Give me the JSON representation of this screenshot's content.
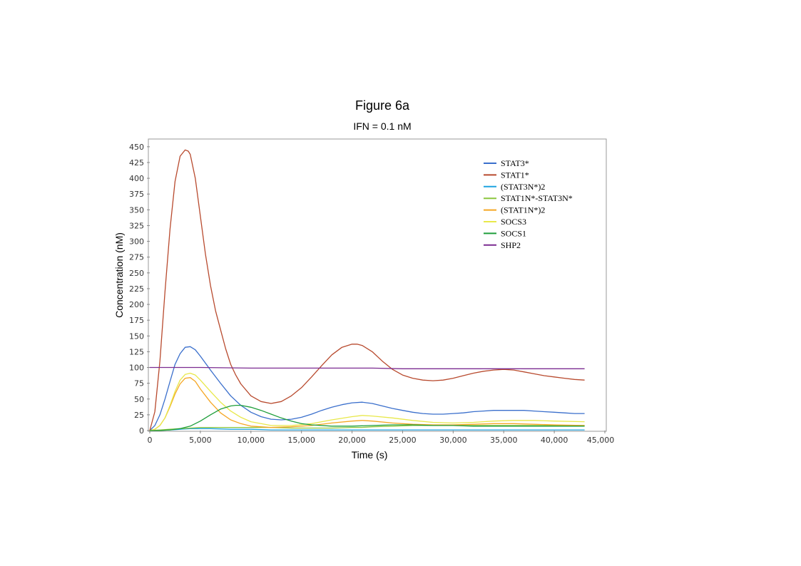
{
  "chart_data": {
    "type": "line",
    "title": "Figure 6a",
    "subtitle": "IFN = 0.1 nM",
    "xlabel": "Time (s)",
    "ylabel": "Concentration (nM)",
    "xlim": [
      0,
      45000
    ],
    "ylim": [
      0,
      460
    ],
    "xticks": [
      0,
      5000,
      10000,
      15000,
      20000,
      25000,
      30000,
      35000,
      40000,
      45000
    ],
    "xtick_labels": [
      "0",
      "5,000",
      "10,000",
      "15,000",
      "20,000",
      "25,000",
      "30,000",
      "35,000",
      "40,000",
      "45,000"
    ],
    "yticks": [
      0,
      25,
      50,
      75,
      100,
      125,
      150,
      175,
      200,
      225,
      250,
      275,
      300,
      325,
      350,
      375,
      400,
      425,
      450
    ],
    "ytick_labels": [
      "0",
      "25",
      "50",
      "75",
      "100",
      "125",
      "150",
      "175",
      "200",
      "225",
      "250",
      "275",
      "300",
      "325",
      "350",
      "375",
      "400",
      "425",
      "450"
    ],
    "grid": false,
    "legend_position": "top-right",
    "series": [
      {
        "name": "STAT3*",
        "color": "#3a6fcc",
        "x": [
          0,
          500,
          1000,
          1500,
          2000,
          2500,
          3000,
          3500,
          4000,
          4500,
          5000,
          6000,
          7000,
          8000,
          9000,
          10000,
          11000,
          12000,
          13000,
          14000,
          15000,
          16000,
          17000,
          18000,
          19000,
          20000,
          21000,
          22000,
          23000,
          24000,
          25000,
          26000,
          27000,
          28000,
          29000,
          30000,
          31000,
          32000,
          33000,
          34000,
          35000,
          36000,
          37000,
          38000,
          39000,
          40000,
          41000,
          42000,
          43000
        ],
        "values": [
          0,
          8,
          25,
          50,
          78,
          105,
          122,
          132,
          133,
          128,
          118,
          96,
          75,
          55,
          40,
          29,
          22,
          18,
          17,
          18,
          21,
          26,
          32,
          37,
          41,
          44,
          45,
          43,
          39,
          35,
          32,
          29,
          27,
          26,
          26,
          27,
          28,
          30,
          31,
          32,
          32,
          32,
          32,
          31,
          30,
          29,
          28,
          27,
          27
        ]
      },
      {
        "name": "STAT1*",
        "color": "#b84a2e",
        "x": [
          0,
          500,
          1000,
          1500,
          2000,
          2500,
          3000,
          3500,
          3800,
          4000,
          4500,
          5000,
          5500,
          6000,
          6500,
          7000,
          7500,
          8000,
          8500,
          9000,
          10000,
          11000,
          12000,
          13000,
          14000,
          15000,
          16000,
          17000,
          18000,
          19000,
          20000,
          20500,
          21000,
          22000,
          23000,
          24000,
          25000,
          26000,
          27000,
          28000,
          29000,
          30000,
          31000,
          32000,
          33000,
          34000,
          35000,
          36000,
          37000,
          38000,
          39000,
          40000,
          41000,
          42000,
          43000
        ],
        "values": [
          0,
          30,
          110,
          220,
          320,
          395,
          435,
          445,
          443,
          438,
          400,
          340,
          280,
          230,
          190,
          160,
          130,
          105,
          88,
          74,
          55,
          46,
          43,
          46,
          55,
          68,
          85,
          103,
          120,
          132,
          137,
          137,
          135,
          125,
          110,
          97,
          88,
          83,
          80,
          79,
          80,
          83,
          87,
          91,
          94,
          96,
          97,
          96,
          93,
          90,
          87,
          85,
          83,
          81,
          80
        ]
      },
      {
        "name": "(STAT3N*)2",
        "color": "#1fa4e0",
        "x": [
          0,
          2000,
          4000,
          6000,
          8000,
          10000,
          12000,
          16000,
          20000,
          25000,
          30000,
          35000,
          40000,
          43000
        ],
        "values": [
          0,
          1,
          3,
          3,
          2,
          2,
          1,
          1,
          1,
          1,
          1,
          1,
          1,
          1
        ]
      },
      {
        "name": "STAT1N*-STAT3N*",
        "color": "#8cc63f",
        "x": [
          0,
          1000,
          2000,
          3000,
          4000,
          5000,
          6000,
          8000,
          10000,
          12000,
          14000,
          16000,
          18000,
          20000,
          21000,
          22000,
          24000,
          26000,
          28000,
          30000,
          33000,
          36000,
          40000,
          43000
        ],
        "values": [
          0,
          1,
          2,
          3,
          4,
          5,
          5,
          5,
          5,
          5,
          4,
          4,
          4,
          5,
          5,
          6,
          7,
          8,
          8,
          8,
          8,
          8,
          8,
          8
        ]
      },
      {
        "name": "(STAT1N*)2",
        "color": "#f5a623",
        "x": [
          0,
          500,
          1000,
          1500,
          2000,
          2500,
          3000,
          3500,
          4000,
          4500,
          5000,
          6000,
          7000,
          8000,
          9000,
          10000,
          12000,
          14000,
          16000,
          18000,
          20000,
          21000,
          22000,
          24000,
          26000,
          28000,
          30000,
          32000,
          34000,
          36000,
          38000,
          40000,
          43000
        ],
        "values": [
          0,
          2,
          8,
          20,
          38,
          58,
          74,
          83,
          84,
          78,
          66,
          45,
          28,
          17,
          11,
          7,
          5,
          6,
          8,
          12,
          15,
          16,
          15,
          12,
          10,
          9,
          9,
          10,
          11,
          11,
          10,
          9,
          8
        ]
      },
      {
        "name": "SOCS3",
        "color": "#e8e84a",
        "x": [
          0,
          500,
          1000,
          1500,
          2000,
          2500,
          3000,
          3500,
          4000,
          4500,
          5000,
          6000,
          7000,
          8000,
          9000,
          10000,
          12000,
          14000,
          16000,
          18000,
          20000,
          21000,
          22000,
          24000,
          26000,
          28000,
          30000,
          32000,
          34000,
          36000,
          38000,
          40000,
          43000
        ],
        "values": [
          0,
          2,
          8,
          20,
          40,
          62,
          80,
          89,
          91,
          88,
          80,
          62,
          45,
          31,
          21,
          14,
          8,
          8,
          11,
          17,
          22,
          24,
          23,
          20,
          16,
          13,
          12,
          13,
          15,
          16,
          16,
          15,
          14
        ]
      },
      {
        "name": "SOCS1",
        "color": "#1e9e3a",
        "x": [
          0,
          1000,
          2000,
          3000,
          4000,
          5000,
          6000,
          7000,
          8000,
          8500,
          9000,
          10000,
          11000,
          12000,
          13000,
          14000,
          15000,
          16000,
          18000,
          20000,
          22000,
          24000,
          26000,
          28000,
          30000,
          32000,
          34000,
          36000,
          38000,
          40000,
          43000
        ],
        "values": [
          0,
          0,
          1,
          3,
          7,
          15,
          25,
          34,
          39,
          40,
          40,
          37,
          32,
          26,
          20,
          15,
          11,
          9,
          7,
          7,
          8,
          9,
          9,
          8,
          8,
          7,
          7,
          7,
          7,
          7,
          7
        ]
      },
      {
        "name": "SHP2",
        "color": "#7b2c91",
        "x": [
          0,
          5000,
          10000,
          15000,
          20000,
          22000,
          25000,
          30000,
          35000,
          40000,
          43000
        ],
        "values": [
          100,
          100,
          99,
          99,
          99,
          99,
          98,
          98,
          98,
          98,
          98
        ]
      }
    ]
  }
}
